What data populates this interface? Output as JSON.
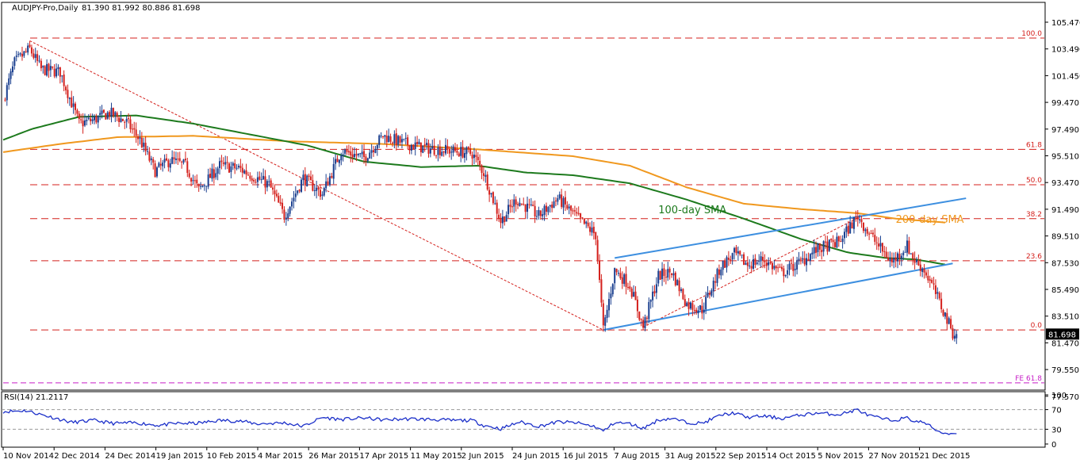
{
  "header": {
    "symbol": "AUDJPY-Pro,Daily",
    "ohlc": "81.390 81.992 80.886 81.698"
  },
  "colors": {
    "up_candle": "#1a3f8f",
    "down_candle": "#d4201c",
    "sma100": "#1d7a1d",
    "sma200": "#f0981e",
    "channel": "#3d8fe0",
    "fib": "#d4201c",
    "fe": "#c71fc7",
    "rsi": "#1b2fc9",
    "grid_text": "#000000"
  },
  "chart_data": [
    {
      "type": "candlestick",
      "title": "AUDJPY-Pro,Daily",
      "ylim": [
        77.57,
        106.13
      ],
      "yticks": [
        "105.470",
        "103.490",
        "101.450",
        "99.470",
        "97.490",
        "95.510",
        "93.470",
        "91.490",
        "89.510",
        "87.530",
        "85.490",
        "83.510",
        "81.470",
        "79.550",
        "77.570"
      ],
      "last_price_label": "81.698",
      "last_price": 81.698,
      "x_dates": [
        "10 Nov 2014",
        "2 Dec 2014",
        "24 Dec 2014",
        "19 Jan 2015",
        "10 Feb 2015",
        "4 Mar 2015",
        "26 Mar 2015",
        "17 Apr 2015",
        "11 May 2015",
        "2 Jun 2015",
        "24 Jun 2015",
        "16 Jul 2015",
        "7 Aug 2015",
        "31 Aug 2015",
        "22 Sep 2015",
        "14 Oct 2015",
        "5 Nov 2015",
        "27 Nov 2015",
        "21 Dec 2015"
      ],
      "bars": 300,
      "price_path": [
        [
          0,
          98.9
        ],
        [
          6,
          101.7
        ],
        [
          14,
          102.7
        ],
        [
          20,
          101.2
        ],
        [
          30,
          101.0
        ],
        [
          40,
          97.2
        ],
        [
          48,
          97.5
        ],
        [
          56,
          98.0
        ],
        [
          65,
          97.3
        ],
        [
          72,
          96.0
        ],
        [
          80,
          93.7
        ],
        [
          88,
          94.5
        ],
        [
          96,
          94.1
        ],
        [
          103,
          92.3
        ],
        [
          114,
          94.1
        ],
        [
          124,
          93.9
        ],
        [
          140,
          92.7
        ],
        [
          148,
          90.4
        ],
        [
          158,
          93.2
        ],
        [
          168,
          92.0
        ],
        [
          178,
          95.2
        ],
        [
          190,
          94.7
        ],
        [
          200,
          96.3
        ],
        [
          210,
          95.8
        ],
        [
          222,
          95.4
        ],
        [
          236,
          95.2
        ],
        [
          247,
          95.0
        ],
        [
          253,
          93.6
        ],
        [
          262,
          90.0
        ],
        [
          270,
          91.6
        ],
        [
          282,
          90.4
        ],
        [
          292,
          91.7
        ],
        [
          305,
          89.9
        ],
        [
          312,
          89.0
        ],
        [
          316,
          82.0
        ],
        [
          322,
          86.4
        ],
        [
          330,
          85.3
        ],
        [
          337,
          82.2
        ],
        [
          345,
          86.0
        ],
        [
          352,
          86.3
        ],
        [
          360,
          83.9
        ],
        [
          368,
          83.5
        ],
        [
          378,
          86.7
        ],
        [
          385,
          87.6
        ],
        [
          392,
          86.8
        ],
        [
          400,
          87.2
        ],
        [
          410,
          86.2
        ],
        [
          420,
          87.0
        ],
        [
          428,
          87.9
        ],
        [
          440,
          88.5
        ],
        [
          450,
          90.4
        ],
        [
          455,
          89.3
        ],
        [
          462,
          88.0
        ],
        [
          468,
          87.0
        ],
        [
          476,
          88.2
        ],
        [
          480,
          87.1
        ],
        [
          485,
          86.4
        ],
        [
          490,
          85.0
        ],
        [
          495,
          83.4
        ],
        [
          500,
          81.8
        ],
        [
          502,
          81.7
        ]
      ],
      "annotations": [
        {
          "text": "100-day SMA",
          "at": [
            345,
            90.6
          ]
        },
        {
          "text": "200-day SMA",
          "at": [
            470,
            89.9
          ]
        }
      ],
      "fib_levels": [
        {
          "label": "100.0",
          "value": 103.5
        },
        {
          "label": "61.8",
          "value": 95.3
        },
        {
          "label": "50.0",
          "value": 92.7
        },
        {
          "label": "38.2",
          "value": 90.2
        },
        {
          "label": "23.6",
          "value": 87.1
        },
        {
          "label": "0.0",
          "value": 82.0
        },
        {
          "label": "FE 61.8",
          "value": 78.1
        }
      ],
      "sma100": [
        [
          0,
          96.0
        ],
        [
          15,
          96.8
        ],
        [
          40,
          97.7
        ],
        [
          70,
          97.8
        ],
        [
          100,
          97.2
        ],
        [
          130,
          96.4
        ],
        [
          160,
          95.6
        ],
        [
          190,
          94.4
        ],
        [
          220,
          94.0
        ],
        [
          250,
          94.1
        ],
        [
          275,
          93.6
        ],
        [
          300,
          93.4
        ],
        [
          330,
          92.8
        ],
        [
          360,
          91.6
        ],
        [
          390,
          90.2
        ],
        [
          420,
          88.7
        ],
        [
          445,
          87.7
        ],
        [
          465,
          87.3
        ],
        [
          480,
          87.2
        ],
        [
          497,
          86.8
        ]
      ],
      "sma200": [
        [
          0,
          95.1
        ],
        [
          30,
          95.7
        ],
        [
          60,
          96.2
        ],
        [
          100,
          96.3
        ],
        [
          150,
          95.9
        ],
        [
          200,
          95.7
        ],
        [
          250,
          95.3
        ],
        [
          300,
          94.8
        ],
        [
          330,
          94.1
        ],
        [
          360,
          92.5
        ],
        [
          390,
          91.3
        ],
        [
          420,
          90.9
        ],
        [
          450,
          90.6
        ],
        [
          470,
          90.2
        ],
        [
          497,
          89.9
        ]
      ],
      "channel_lines": [
        [
          [
            316,
            82.0
          ],
          [
            500,
            86.9
          ]
        ],
        [
          [
            322,
            87.3
          ],
          [
            507,
            91.7
          ]
        ]
      ],
      "trend_line": [
        [
          14,
          103.3
        ],
        [
          316,
          82.0
        ]
      ],
      "inner_dotted": [
        [
          337,
          82.2
        ],
        [
          452,
          90.4
        ]
      ]
    },
    {
      "type": "line",
      "title": "RSI(14) 21.2117",
      "ylim": [
        0,
        100
      ],
      "yticks": [
        "100",
        "70",
        "30",
        "0"
      ],
      "levels": [
        70,
        30
      ],
      "rsi_path": [
        [
          0,
          66
        ],
        [
          12,
          68
        ],
        [
          24,
          56
        ],
        [
          36,
          44
        ],
        [
          48,
          48
        ],
        [
          58,
          42
        ],
        [
          70,
          43
        ],
        [
          82,
          38
        ],
        [
          92,
          42
        ],
        [
          102,
          42
        ],
        [
          114,
          48
        ],
        [
          124,
          47
        ],
        [
          134,
          41
        ],
        [
          148,
          43
        ],
        [
          158,
          36
        ],
        [
          168,
          54
        ],
        [
          178,
          50
        ],
        [
          190,
          53
        ],
        [
          200,
          49
        ],
        [
          212,
          51
        ],
        [
          226,
          50
        ],
        [
          236,
          48
        ],
        [
          247,
          48
        ],
        [
          253,
          38
        ],
        [
          262,
          31
        ],
        [
          272,
          45
        ],
        [
          282,
          36
        ],
        [
          292,
          45
        ],
        [
          302,
          43
        ],
        [
          312,
          35
        ],
        [
          316,
          26
        ],
        [
          322,
          44
        ],
        [
          330,
          41
        ],
        [
          337,
          32
        ],
        [
          345,
          49
        ],
        [
          352,
          52
        ],
        [
          360,
          44
        ],
        [
          368,
          42
        ],
        [
          378,
          59
        ],
        [
          385,
          63
        ],
        [
          392,
          54
        ],
        [
          400,
          57
        ],
        [
          410,
          52
        ],
        [
          420,
          59
        ],
        [
          428,
          63
        ],
        [
          440,
          60
        ],
        [
          450,
          70
        ],
        [
          455,
          59
        ],
        [
          462,
          52
        ],
        [
          468,
          48
        ],
        [
          476,
          53
        ],
        [
          480,
          46
        ],
        [
          485,
          44
        ],
        [
          490,
          31
        ],
        [
          495,
          22
        ],
        [
          502,
          21
        ]
      ]
    }
  ]
}
